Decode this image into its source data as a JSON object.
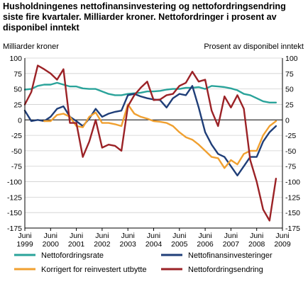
{
  "chart_data": {
    "type": "line",
    "title": "Husholdningenes nettofinansinvestering og nettofordringsendring siste fire kvartaler. Milliarder kroner. Nettofordringer i prosent av disponibel inntekt",
    "ylabel_left": "Milliarder kroner",
    "ylabel_right": "Prosent av disponibel inntekt",
    "ylim": [
      -175,
      100
    ],
    "yticks": [
      100,
      75,
      50,
      25,
      0,
      -25,
      -50,
      -75,
      -100,
      -125,
      -150,
      -175
    ],
    "xlim": [
      1999.5,
      2009.5
    ],
    "x_ticks": [
      {
        "x": 1999.5,
        "top": "Juni",
        "bottom": "1999"
      },
      {
        "x": 2000.5,
        "top": "Juni",
        "bottom": "2000"
      },
      {
        "x": 2001.5,
        "top": "Juni",
        "bottom": "2001"
      },
      {
        "x": 2002.5,
        "top": "Juni",
        "bottom": "2002"
      },
      {
        "x": 2003.5,
        "top": "Juni",
        "bottom": "2003"
      },
      {
        "x": 2004.5,
        "top": "Juni",
        "bottom": "2004"
      },
      {
        "x": 2005.5,
        "top": "Juni",
        "bottom": "2005"
      },
      {
        "x": 2006.5,
        "top": "Juni",
        "bottom": "2006"
      },
      {
        "x": 2007.5,
        "top": "Juni",
        "bottom": "2007"
      },
      {
        "x": 2008.5,
        "top": "Juni",
        "bottom": "2008"
      },
      {
        "x": 2009.5,
        "top": "Juni",
        "bottom": "2009"
      }
    ],
    "series": [
      {
        "name": "Nettofordringsrate",
        "color": "#2aa39a",
        "points": [
          [
            1999.5,
            49
          ],
          [
            1999.75,
            50
          ],
          [
            2000.0,
            55
          ],
          [
            2000.25,
            57
          ],
          [
            2000.5,
            57
          ],
          [
            2000.75,
            60
          ],
          [
            2001.0,
            57
          ],
          [
            2001.25,
            54
          ],
          [
            2001.5,
            54
          ],
          [
            2001.75,
            51
          ],
          [
            2002.0,
            50
          ],
          [
            2002.25,
            50
          ],
          [
            2002.5,
            46
          ],
          [
            2002.75,
            42
          ],
          [
            2003.0,
            40
          ],
          [
            2003.25,
            40
          ],
          [
            2003.5,
            42
          ],
          [
            2003.75,
            43
          ],
          [
            2004.0,
            44
          ],
          [
            2004.25,
            46
          ],
          [
            2004.5,
            46
          ],
          [
            2004.75,
            47
          ],
          [
            2005.0,
            49
          ],
          [
            2005.25,
            50
          ],
          [
            2005.5,
            50
          ],
          [
            2005.75,
            52
          ],
          [
            2006.0,
            52
          ],
          [
            2006.25,
            53
          ],
          [
            2006.5,
            50
          ],
          [
            2006.75,
            55
          ],
          [
            2007.0,
            54
          ],
          [
            2007.25,
            53
          ],
          [
            2007.5,
            51
          ],
          [
            2007.75,
            48
          ],
          [
            2008.0,
            42
          ],
          [
            2008.25,
            40
          ],
          [
            2008.5,
            35
          ],
          [
            2008.75,
            30
          ],
          [
            2009.0,
            28
          ],
          [
            2009.25,
            28
          ]
        ]
      },
      {
        "name": "Nettofinansinvesteringer",
        "color": "#1f3e78",
        "points": [
          [
            1999.5,
            15
          ],
          [
            1999.75,
            -2
          ],
          [
            2000.0,
            0
          ],
          [
            2000.25,
            -2
          ],
          [
            2000.5,
            5
          ],
          [
            2000.75,
            18
          ],
          [
            2001.0,
            22
          ],
          [
            2001.25,
            5
          ],
          [
            2001.5,
            -2
          ],
          [
            2001.75,
            -10
          ],
          [
            2002.0,
            2
          ],
          [
            2002.25,
            18
          ],
          [
            2002.5,
            5
          ],
          [
            2002.75,
            10
          ],
          [
            2003.0,
            13
          ],
          [
            2003.25,
            15
          ],
          [
            2003.5,
            40
          ],
          [
            2003.75,
            42
          ],
          [
            2004.0,
            38
          ],
          [
            2004.25,
            35
          ],
          [
            2004.5,
            33
          ],
          [
            2004.75,
            32
          ],
          [
            2005.0,
            20
          ],
          [
            2005.25,
            35
          ],
          [
            2005.5,
            42
          ],
          [
            2005.75,
            40
          ],
          [
            2006.0,
            55
          ],
          [
            2006.25,
            20
          ],
          [
            2006.5,
            -20
          ],
          [
            2006.75,
            -40
          ],
          [
            2007.0,
            -55
          ],
          [
            2007.25,
            -60
          ],
          [
            2007.5,
            -75
          ],
          [
            2007.75,
            -90
          ],
          [
            2008.0,
            -75
          ],
          [
            2008.25,
            -60
          ],
          [
            2008.5,
            -60
          ],
          [
            2008.75,
            -35
          ],
          [
            2009.0,
            -20
          ],
          [
            2009.25,
            -10
          ]
        ]
      },
      {
        "name": "Korrigert for reinvestert utbytte",
        "color": "#f0a030",
        "points": [
          [
            2000.25,
            -2
          ],
          [
            2000.5,
            -2
          ],
          [
            2000.75,
            8
          ],
          [
            2001.0,
            10
          ],
          [
            2001.25,
            5
          ],
          [
            2001.5,
            -10
          ],
          [
            2001.75,
            -12
          ],
          [
            2002.0,
            5
          ],
          [
            2002.25,
            12
          ],
          [
            2002.5,
            -5
          ],
          [
            2002.75,
            -5
          ],
          [
            2003.0,
            -7
          ],
          [
            2003.25,
            -10
          ],
          [
            2003.5,
            25
          ],
          [
            2003.75,
            10
          ],
          [
            2004.0,
            5
          ],
          [
            2004.25,
            2
          ],
          [
            2004.5,
            -2
          ],
          [
            2004.75,
            -3
          ],
          [
            2005.0,
            -5
          ],
          [
            2005.25,
            -10
          ],
          [
            2005.5,
            -20
          ],
          [
            2005.75,
            -28
          ],
          [
            2006.0,
            -32
          ],
          [
            2006.25,
            -40
          ],
          [
            2006.5,
            -50
          ],
          [
            2006.75,
            -60
          ],
          [
            2007.0,
            -62
          ],
          [
            2007.25,
            -78
          ],
          [
            2007.5,
            -65
          ],
          [
            2007.75,
            -72
          ],
          [
            2008.0,
            -55
          ],
          [
            2008.25,
            -50
          ],
          [
            2008.5,
            -50
          ],
          [
            2008.75,
            -25
          ],
          [
            2009.0,
            -10
          ],
          [
            2009.25,
            -2
          ]
        ]
      },
      {
        "name": "Nettofordringsendring",
        "color": "#9b2226",
        "points": [
          [
            1999.5,
            25
          ],
          [
            1999.75,
            45
          ],
          [
            2000.0,
            88
          ],
          [
            2000.25,
            82
          ],
          [
            2000.5,
            75
          ],
          [
            2000.75,
            65
          ],
          [
            2001.0,
            82
          ],
          [
            2001.25,
            -5
          ],
          [
            2001.5,
            -5
          ],
          [
            2001.75,
            -60
          ],
          [
            2002.0,
            -35
          ],
          [
            2002.25,
            0
          ],
          [
            2002.5,
            -45
          ],
          [
            2002.75,
            -40
          ],
          [
            2003.0,
            -42
          ],
          [
            2003.25,
            -50
          ],
          [
            2003.5,
            22
          ],
          [
            2003.75,
            40
          ],
          [
            2004.0,
            52
          ],
          [
            2004.25,
            62
          ],
          [
            2004.5,
            32
          ],
          [
            2004.75,
            33
          ],
          [
            2005.0,
            40
          ],
          [
            2005.25,
            42
          ],
          [
            2005.5,
            55
          ],
          [
            2005.75,
            60
          ],
          [
            2006.0,
            78
          ],
          [
            2006.25,
            62
          ],
          [
            2006.5,
            65
          ],
          [
            2006.75,
            15
          ],
          [
            2007.0,
            -10
          ],
          [
            2007.25,
            38
          ],
          [
            2007.5,
            20
          ],
          [
            2007.75,
            40
          ],
          [
            2008.0,
            18
          ],
          [
            2008.25,
            -65
          ],
          [
            2008.5,
            -100
          ],
          [
            2008.75,
            -145
          ],
          [
            2009.0,
            -163
          ],
          [
            2009.25,
            -95
          ]
        ]
      }
    ],
    "legend": {
      "placement": "bottom",
      "columns": 2
    }
  }
}
